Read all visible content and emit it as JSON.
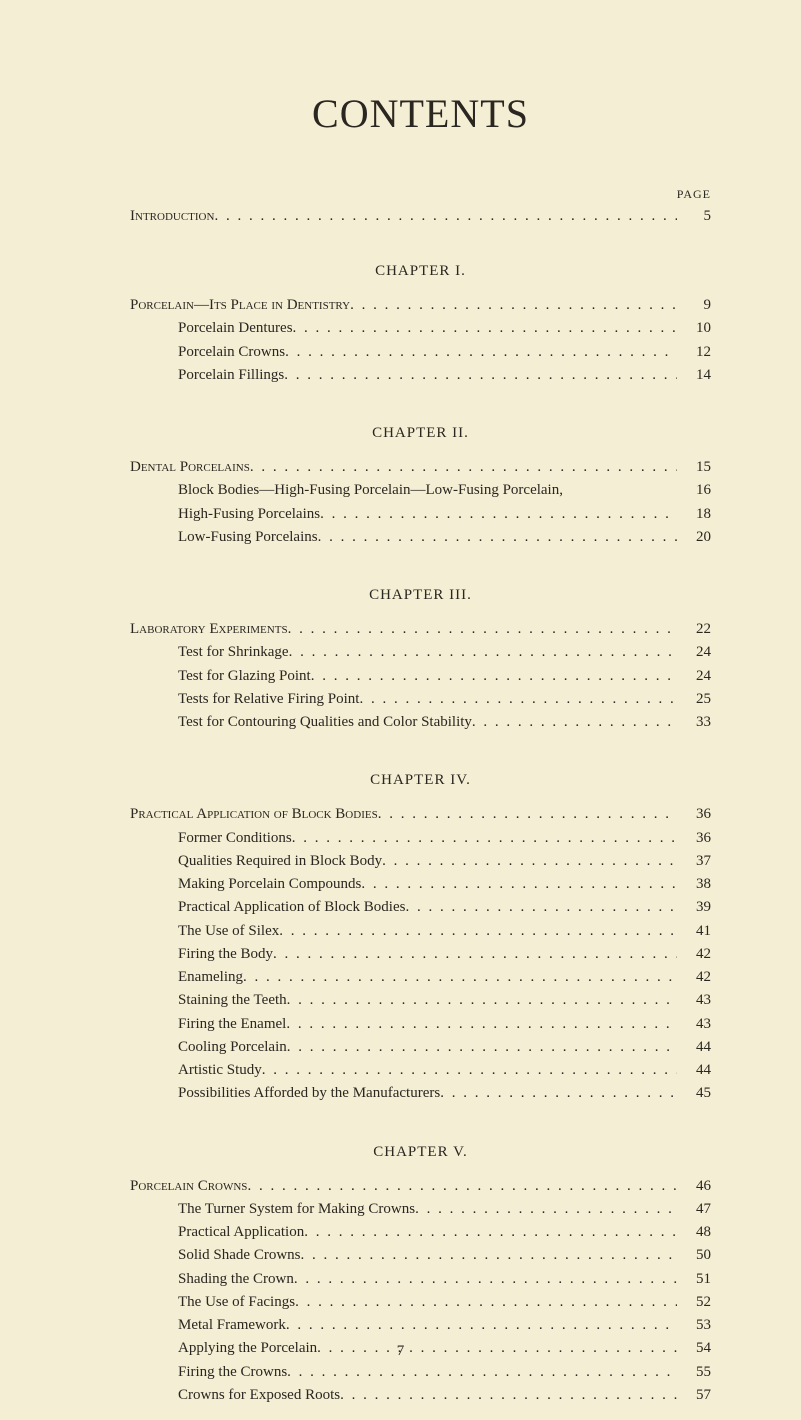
{
  "colors": {
    "background": "#f4eed4",
    "text": "#2a2620"
  },
  "typography": {
    "title_fontsize_pt": 30,
    "body_fontsize_pt": 11,
    "font_family": "Times New Roman, serif"
  },
  "title": "CONTENTS",
  "page_label": "PAGE",
  "introduction": {
    "label": "Introduction",
    "page": "5"
  },
  "chapters": [
    {
      "heading": "CHAPTER I.",
      "entries": [
        {
          "label": "Porcelain—Its Place in Dentistry",
          "page": "9",
          "indent": 0,
          "smallcaps": true
        },
        {
          "label": "Porcelain Dentures",
          "page": "10",
          "indent": 1,
          "smallcaps": false
        },
        {
          "label": "Porcelain Crowns",
          "page": "12",
          "indent": 1,
          "smallcaps": false
        },
        {
          "label": "Porcelain Fillings",
          "page": "14",
          "indent": 1,
          "smallcaps": false
        }
      ]
    },
    {
      "heading": "CHAPTER II.",
      "entries": [
        {
          "label": "Dental Porcelains",
          "page": "15",
          "indent": 0,
          "smallcaps": true
        },
        {
          "label": "Block Bodies—High-Fusing Porcelain—Low-Fusing Porcelain,",
          "page": "16",
          "indent": 1,
          "smallcaps": false,
          "noleader": true
        },
        {
          "label": "High-Fusing Porcelains",
          "page": "18",
          "indent": 1,
          "smallcaps": false
        },
        {
          "label": "Low-Fusing Porcelains",
          "page": "20",
          "indent": 1,
          "smallcaps": false
        }
      ]
    },
    {
      "heading": "CHAPTER III.",
      "entries": [
        {
          "label": "Laboratory Experiments",
          "page": "22",
          "indent": 0,
          "smallcaps": true
        },
        {
          "label": "Test for Shrinkage",
          "page": "24",
          "indent": 1,
          "smallcaps": false
        },
        {
          "label": "Test for Glazing Point",
          "page": "24",
          "indent": 1,
          "smallcaps": false
        },
        {
          "label": "Tests for Relative Firing Point",
          "page": "25",
          "indent": 1,
          "smallcaps": false
        },
        {
          "label": "Test for Contouring Qualities and Color Stability",
          "page": "33",
          "indent": 1,
          "smallcaps": false
        }
      ]
    },
    {
      "heading": "CHAPTER IV.",
      "entries": [
        {
          "label": "Practical Application of Block Bodies",
          "page": "36",
          "indent": 0,
          "smallcaps": true
        },
        {
          "label": "Former Conditions",
          "page": "36",
          "indent": 1,
          "smallcaps": false
        },
        {
          "label": "Qualities Required in Block Body",
          "page": "37",
          "indent": 1,
          "smallcaps": false
        },
        {
          "label": "Making Porcelain Compounds",
          "page": "38",
          "indent": 1,
          "smallcaps": false
        },
        {
          "label": "Practical Application of Block Bodies",
          "page": "39",
          "indent": 1,
          "smallcaps": false
        },
        {
          "label": "The Use of Silex",
          "page": "41",
          "indent": 1,
          "smallcaps": false
        },
        {
          "label": "Firing the Body",
          "page": "42",
          "indent": 1,
          "smallcaps": false
        },
        {
          "label": "Enameling",
          "page": "42",
          "indent": 1,
          "smallcaps": false
        },
        {
          "label": "Staining the Teeth",
          "page": "43",
          "indent": 1,
          "smallcaps": false
        },
        {
          "label": "Firing the Enamel",
          "page": "43",
          "indent": 1,
          "smallcaps": false
        },
        {
          "label": "Cooling Porcelain",
          "page": "44",
          "indent": 1,
          "smallcaps": false
        },
        {
          "label": "Artistic Study",
          "page": "44",
          "indent": 1,
          "smallcaps": false
        },
        {
          "label": "Possibilities Afforded by the Manufacturers",
          "page": "45",
          "indent": 1,
          "smallcaps": false
        }
      ]
    },
    {
      "heading": "CHAPTER V.",
      "entries": [
        {
          "label": "Porcelain Crowns",
          "page": "46",
          "indent": 0,
          "smallcaps": true
        },
        {
          "label": "The Turner System for Making Crowns",
          "page": "47",
          "indent": 1,
          "smallcaps": false
        },
        {
          "label": "Practical Application",
          "page": "48",
          "indent": 1,
          "smallcaps": false
        },
        {
          "label": "Solid Shade Crowns",
          "page": "50",
          "indent": 1,
          "smallcaps": false
        },
        {
          "label": "Shading the Crown",
          "page": "51",
          "indent": 1,
          "smallcaps": false
        },
        {
          "label": "The Use of Facings",
          "page": "52",
          "indent": 1,
          "smallcaps": false
        },
        {
          "label": "Metal Framework",
          "page": "53",
          "indent": 1,
          "smallcaps": false
        },
        {
          "label": "Applying the Porcelain",
          "page": "54",
          "indent": 1,
          "smallcaps": false
        },
        {
          "label": "Firing the Crowns",
          "page": "55",
          "indent": 1,
          "smallcaps": false
        },
        {
          "label": "Crowns for Exposed Roots",
          "page": "57",
          "indent": 1,
          "smallcaps": false
        }
      ]
    }
  ],
  "footer_page_number": "7",
  "leader_pattern": ". . . . . . . . . . . . . . . . . . . . . . . . . . . . . . . . . . . . . . . . . . . . . . . . . . . . . . . . . . . . . . . . . . . . . . . . . . . . . . . ."
}
